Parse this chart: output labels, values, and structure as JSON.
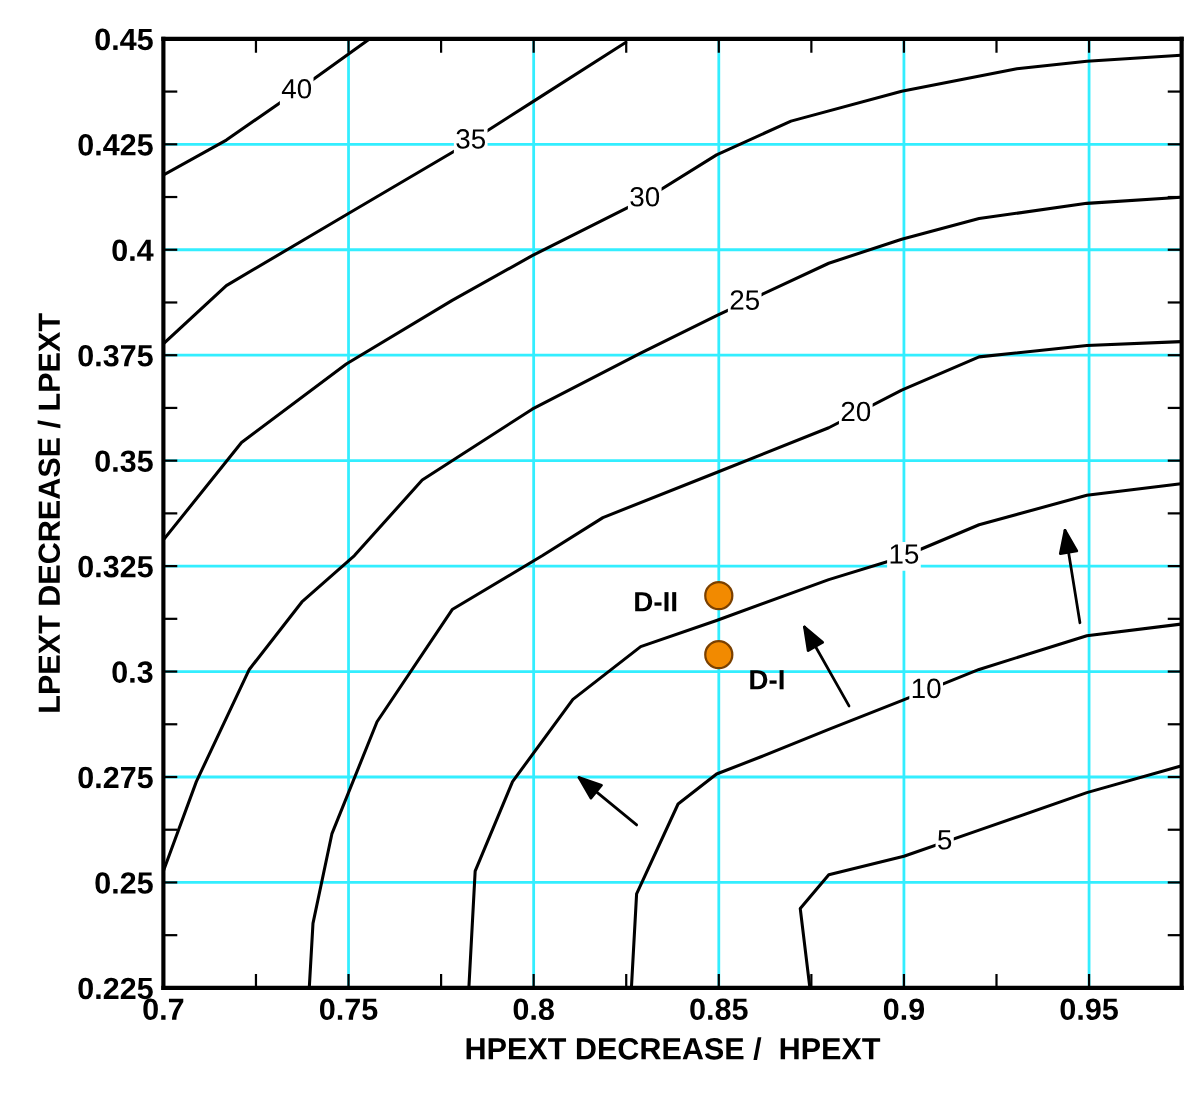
{
  "chart_data": {
    "type": "line",
    "xlabel": "HPEXT DECREASE /  HPEXT",
    "ylabel": "LPEXT DECREASE / LPEXT",
    "xlim": [
      0.7,
      0.975
    ],
    "ylim": [
      0.225,
      0.45
    ],
    "xticks": [
      0.7,
      {
        "value": 0.725,
        "label": null
      },
      0.75,
      {
        "value": 0.775,
        "label": null
      },
      0.8,
      {
        "value": 0.825,
        "label": null
      },
      0.85,
      {
        "value": 0.875,
        "label": null
      },
      0.9,
      {
        "value": 0.925,
        "label": null
      },
      0.95
    ],
    "yticks": [
      0.225,
      {
        "value": 0.2375,
        "label": null
      },
      0.25,
      {
        "value": 0.2625,
        "label": null
      },
      0.275,
      {
        "value": 0.2875,
        "label": null
      },
      0.3,
      {
        "value": 0.3125,
        "label": null
      },
      0.325,
      {
        "value": 0.3375,
        "label": null
      },
      0.35,
      {
        "value": 0.3625,
        "label": null
      },
      0.375,
      {
        "value": 0.3875,
        "label": null
      },
      0.4,
      {
        "value": 0.4125,
        "label": null
      },
      0.425,
      {
        "value": 0.4375,
        "label": null
      },
      0.45
    ],
    "grid": true,
    "marker": "none",
    "line_style": "solid",
    "series": [
      {
        "name": "40",
        "color": "#000000",
        "x": [
          0.7,
          0.717,
          0.736,
          0.7557
        ],
        "values": [
          0.4177,
          0.426,
          0.4376,
          0.45
        ]
      },
      {
        "name": "35",
        "color": "#000000",
        "x": [
          0.7,
          0.717,
          0.7494,
          0.7821,
          0.7996,
          0.8248
        ],
        "values": [
          0.3777,
          0.3915,
          0.4083,
          0.4252,
          0.435,
          0.4491
        ]
      },
      {
        "name": "30",
        "color": "#000000",
        "x": [
          0.7,
          0.7211,
          0.7494,
          0.778,
          0.7996,
          0.8309,
          0.8494,
          0.8695,
          0.8994,
          0.9305,
          0.9494,
          0.9744
        ],
        "values": [
          0.3312,
          0.3543,
          0.3729,
          0.388,
          0.3986,
          0.4124,
          0.4225,
          0.4305,
          0.4376,
          0.4429,
          0.4447,
          0.4461
        ]
      },
      {
        "name": "25",
        "color": "#000000",
        "x": [
          0.7,
          0.7089,
          0.7232,
          0.7374,
          0.7516,
          0.7699,
          0.7996,
          0.8289,
          0.8494,
          0.8797,
          0.8994,
          0.9203,
          0.9494,
          0.9744
        ],
        "values": [
          0.2527,
          0.2739,
          0.3005,
          0.3165,
          0.3275,
          0.3454,
          0.3622,
          0.3755,
          0.3844,
          0.3968,
          0.4025,
          0.4074,
          0.411,
          0.4124
        ]
      },
      {
        "name": "20",
        "color": "#000000",
        "x": [
          0.7394,
          0.7404,
          0.7455,
          0.7577,
          0.778,
          0.8024,
          0.8187,
          0.8494,
          0.8797,
          0.8994,
          0.9203,
          0.9494,
          0.9744
        ],
        "values": [
          0.225,
          0.2403,
          0.2615,
          0.2881,
          0.3147,
          0.3275,
          0.3365,
          0.3472,
          0.3578,
          0.3667,
          0.3746,
          0.3773,
          0.3782
        ]
      },
      {
        "name": "15",
        "color": "#000000",
        "x": [
          0.7825,
          0.7842,
          0.7943,
          0.8106,
          0.8289,
          0.8494,
          0.8797,
          0.8994,
          0.9203,
          0.9494,
          0.9744
        ],
        "values": [
          0.225,
          0.2527,
          0.2739,
          0.2934,
          0.3059,
          0.3121,
          0.3218,
          0.3271,
          0.3348,
          0.3418,
          0.3445
        ]
      },
      {
        "name": "10",
        "color": "#000000",
        "x": [
          0.8264,
          0.8278,
          0.839,
          0.8494,
          0.8614,
          0.8797,
          0.8994,
          0.9203,
          0.9494,
          0.9744
        ],
        "values": [
          0.225,
          0.2473,
          0.2686,
          0.2757,
          0.2798,
          0.2863,
          0.2931,
          0.3005,
          0.3085,
          0.3112
        ]
      },
      {
        "name": "5",
        "color": "#000000",
        "x": [
          0.8746,
          0.872,
          0.8797,
          0.9,
          0.9203,
          0.9494,
          0.9744
        ],
        "values": [
          0.225,
          0.2438,
          0.2518,
          0.2562,
          0.2624,
          0.2713,
          0.2775
        ]
      },
      {
        "name": "D-II",
        "type": "scatter",
        "marker": "circle",
        "color": "#f28a00",
        "x": [
          0.85
        ],
        "values": [
          0.318
        ]
      },
      {
        "name": "D-I",
        "type": "scatter",
        "marker": "circle",
        "color": "#f28a00",
        "x": [
          0.85
        ],
        "values": [
          0.304
        ]
      }
    ]
  }
}
